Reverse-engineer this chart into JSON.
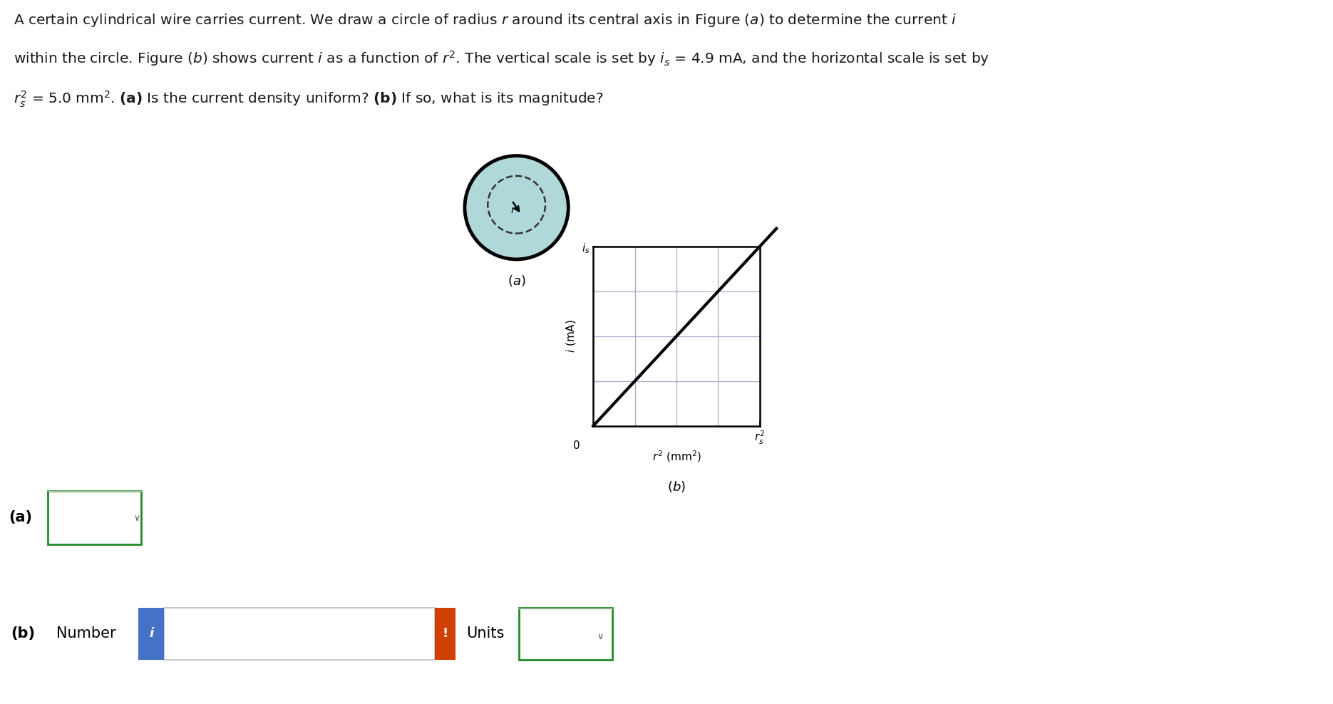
{
  "is_value": 4.9,
  "rs2_value": 5.0,
  "bg_color": "#ffffff",
  "wire_outer_color": "#b0d8d8",
  "wire_border_color": "#000000",
  "graph_grid_color": "#aaaacc",
  "graph_bg_color": "#ffffff",
  "box_border_color": "#228B22",
  "info_button_color": "#4472c4",
  "exclaim_button_color": "#d04000",
  "line1": "A certain cylindrical wire carries current. We draw a circle of radius $r$ around its central axis in Figure ($a$) to determine the current $i$",
  "line2": "within the circle. Figure ($b$) shows current $i$ as a function of $r^2$. The vertical scale is set by $i_s$ = 4.9 mA, and the horizontal scale is set by",
  "line3": "$r_s^2$ = 5.0 mm$^2$. $\\mathbf{(a)}$ Is the current density uniform? $\\mathbf{(b)}$ If so, what is its magnitude?",
  "fig_a_label": "$(a)$",
  "fig_b_label": "$(b)$",
  "graph_ylabel": "$i$ (mA)",
  "graph_xlabel": "$r^2$ (mm$^2$)",
  "graph_ytick_label": "$i_s$",
  "graph_xtick_label": "$r_s^2$",
  "answer_a_label": "(a)",
  "answer_b_label": "(b)",
  "number_label": "Number",
  "units_label": "Units"
}
